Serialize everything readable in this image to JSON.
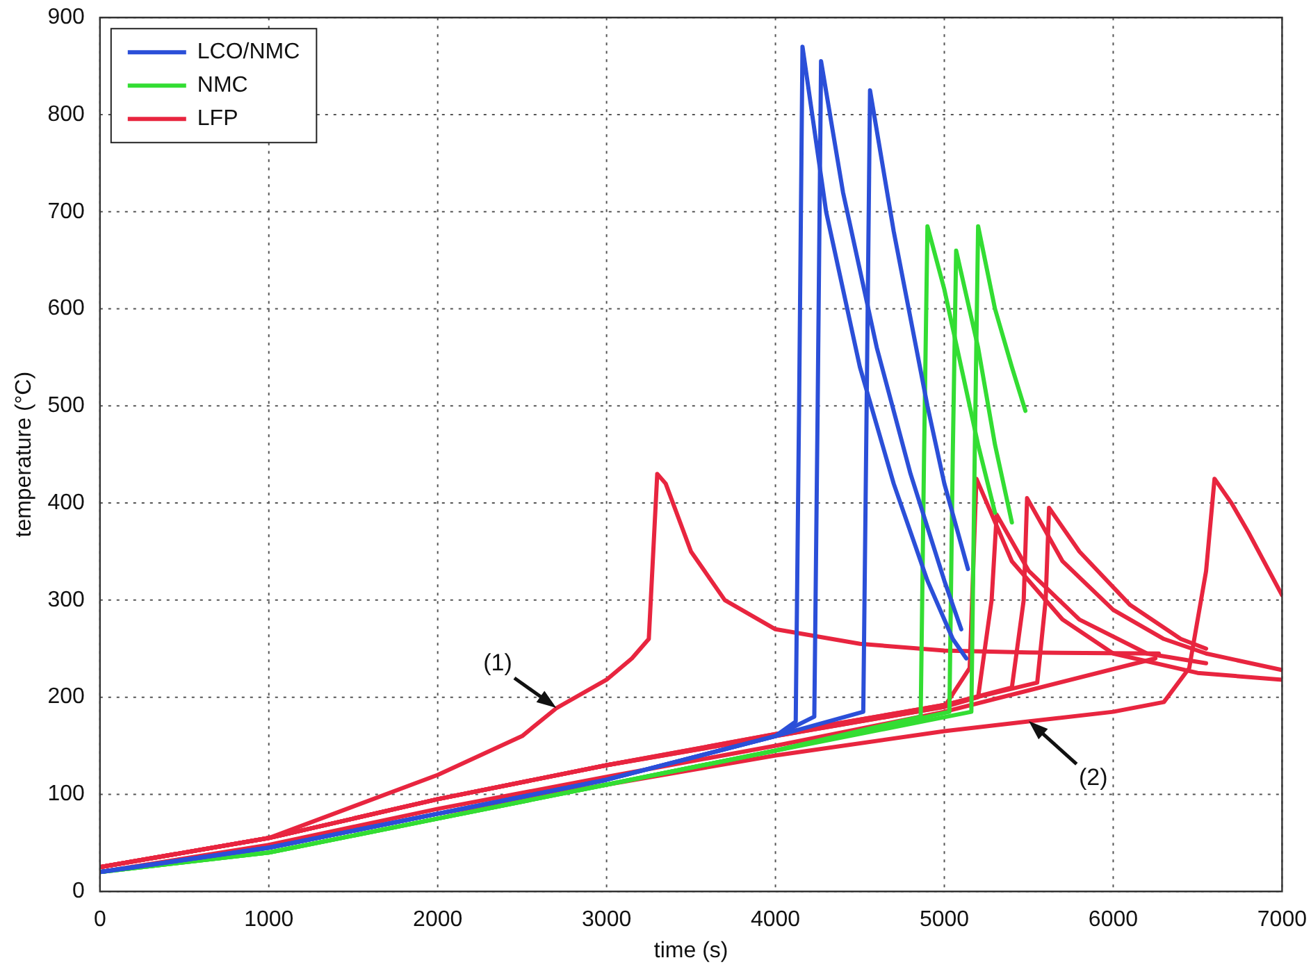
{
  "chart_data": {
    "type": "line",
    "xlabel": "time (s)",
    "ylabel": "temperature (°C)",
    "xlim": [
      0,
      7000
    ],
    "ylim": [
      0,
      900
    ],
    "xticks": [
      0,
      1000,
      2000,
      3000,
      4000,
      5000,
      6000,
      7000
    ],
    "yticks": [
      0,
      100,
      200,
      300,
      400,
      500,
      600,
      700,
      800,
      900
    ],
    "grid": true,
    "legend": "top left",
    "marker": "none",
    "line_style": "solid",
    "annotations": [
      {
        "text": "(1)",
        "x": 2705,
        "y": 189
      },
      {
        "text": "(2)",
        "x": 5497,
        "y": 175
      }
    ],
    "series": [
      {
        "name": "LCO/NMC",
        "color": "#2b4fd8",
        "x": [
          0,
          1000,
          2000,
          3000,
          4000,
          4120,
          4140,
          4160,
          4300,
          4500,
          4700,
          4900,
          5050,
          5130
        ],
        "values": [
          20,
          45,
          80,
          115,
          160,
          175,
          500,
          870,
          700,
          540,
          420,
          320,
          260,
          240
        ]
      },
      {
        "color": "#2b4fd8",
        "x": [
          0,
          1000,
          2000,
          3000,
          4000,
          4230,
          4250,
          4270,
          4400,
          4600,
          4800,
          5000,
          5100
        ],
        "values": [
          20,
          45,
          80,
          115,
          160,
          180,
          500,
          855,
          720,
          560,
          430,
          320,
          270
        ]
      },
      {
        "color": "#2b4fd8",
        "x": [
          0,
          1000,
          2000,
          3000,
          4000,
          4520,
          4540,
          4560,
          4700,
          4900,
          5000,
          5140
        ],
        "values": [
          20,
          45,
          80,
          115,
          160,
          185,
          500,
          825,
          680,
          500,
          420,
          332
        ]
      },
      {
        "name": "NMC",
        "color": "#33dd33",
        "x": [
          0,
          1000,
          2000,
          3000,
          4000,
          4860,
          4880,
          4900,
          5000,
          5100,
          5200,
          5300
        ],
        "values": [
          20,
          40,
          75,
          110,
          145,
          180,
          450,
          685,
          620,
          540,
          460,
          390
        ]
      },
      {
        "color": "#33dd33",
        "x": [
          0,
          1000,
          2000,
          3000,
          4000,
          5030,
          5050,
          5070,
          5200,
          5300,
          5400
        ],
        "values": [
          20,
          40,
          75,
          110,
          145,
          185,
          450,
          660,
          560,
          460,
          380
        ]
      },
      {
        "color": "#33dd33",
        "x": [
          0,
          1000,
          2000,
          3000,
          4000,
          5160,
          5180,
          5200,
          5300,
          5400,
          5480
        ],
        "values": [
          20,
          40,
          75,
          110,
          145,
          185,
          450,
          685,
          600,
          540,
          495
        ]
      },
      {
        "name": "LFP",
        "color": "#e8253f",
        "x": [
          0,
          1000,
          2000,
          2500,
          2705,
          3000,
          3150,
          3250,
          3300,
          3350,
          3500,
          3700,
          4000,
          4500,
          5000,
          5500,
          6270
        ],
        "values": [
          25,
          55,
          120,
          160,
          189,
          218,
          240,
          260,
          430,
          420,
          350,
          300,
          270,
          255,
          248,
          246,
          245
        ]
      },
      {
        "color": "#e8253f",
        "x": [
          0,
          1000,
          2000,
          3000,
          4000,
          5000,
          5497,
          6000,
          6300,
          6450,
          6550,
          6600,
          6700,
          6800,
          7000
        ],
        "values": [
          20,
          45,
          80,
          110,
          140,
          165,
          175,
          185,
          195,
          230,
          330,
          425,
          400,
          370,
          305
        ]
      },
      {
        "color": "#e8253f",
        "x": [
          0,
          1000,
          2000,
          3000,
          4000,
          5000,
          5150,
          5190,
          5400,
          5700,
          6000,
          6500,
          7000
        ],
        "values": [
          25,
          55,
          95,
          130,
          160,
          190,
          230,
          425,
          340,
          280,
          245,
          225,
          218
        ]
      },
      {
        "color": "#e8253f",
        "x": [
          0,
          1000,
          2000,
          3000,
          4000,
          5000,
          5200,
          5280,
          5310,
          5500,
          5800,
          6200,
          6550
        ],
        "values": [
          25,
          55,
          95,
          130,
          160,
          190,
          200,
          300,
          388,
          330,
          280,
          245,
          235
        ]
      },
      {
        "color": "#e8253f",
        "x": [
          0,
          1000,
          2000,
          3000,
          4000,
          5000,
          5400,
          5470,
          5490,
          5700,
          6000,
          6300,
          6550,
          7000
        ],
        "values": [
          25,
          55,
          95,
          130,
          162,
          192,
          210,
          300,
          405,
          340,
          290,
          260,
          245,
          228
        ]
      },
      {
        "color": "#e8253f",
        "x": [
          0,
          1000,
          2000,
          3000,
          4000,
          5000,
          5550,
          5600,
          5620,
          5800,
          6100,
          6400,
          6550
        ],
        "values": [
          25,
          55,
          95,
          130,
          162,
          192,
          215,
          300,
          395,
          350,
          295,
          260,
          250
        ]
      },
      {
        "color": "#e8253f",
        "x": [
          0,
          1000,
          2000,
          3000,
          4000,
          5000,
          6250
        ],
        "values": [
          20,
          48,
          85,
          118,
          150,
          185,
          240
        ]
      }
    ]
  }
}
